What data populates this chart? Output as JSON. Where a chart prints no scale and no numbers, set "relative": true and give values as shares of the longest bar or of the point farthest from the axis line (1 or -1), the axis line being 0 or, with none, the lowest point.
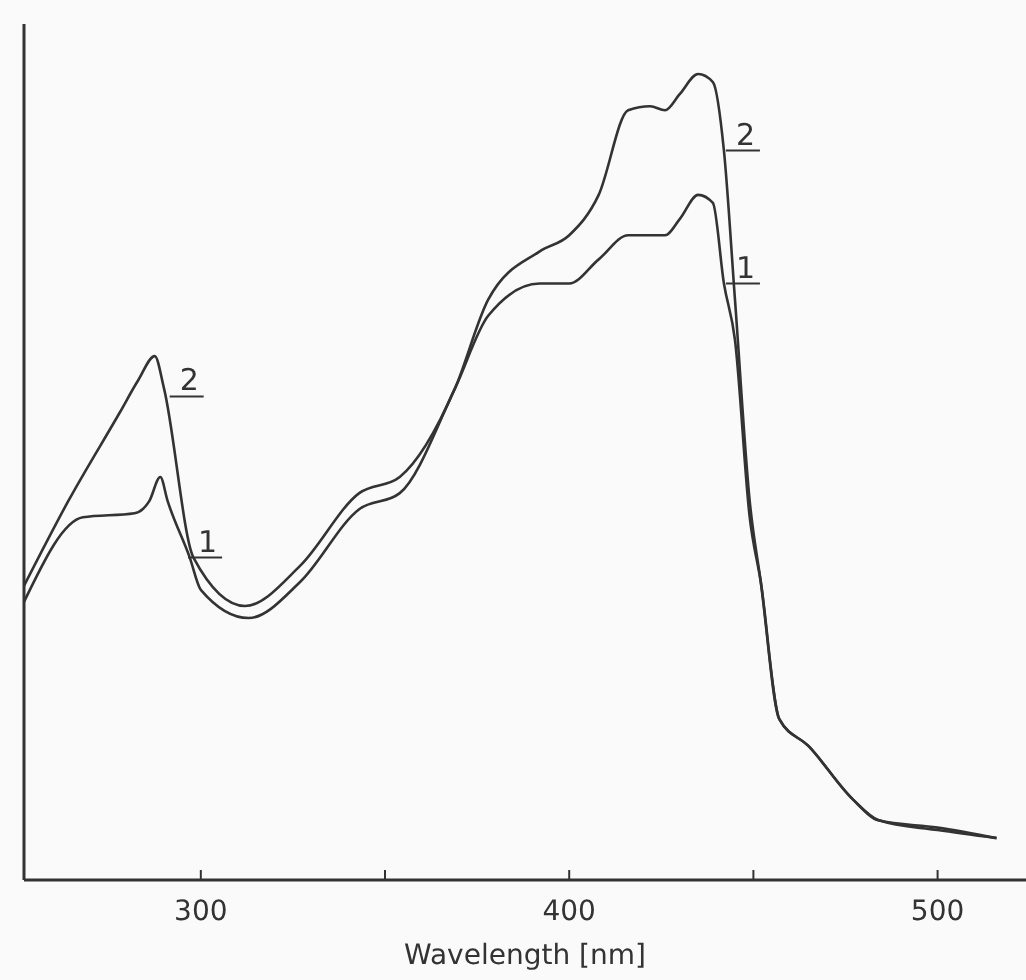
{
  "chart_data": {
    "type": "line",
    "xlabel": "Wavelength [nm]",
    "relative": true,
    "xlim": [
      252,
      524
    ],
    "xticks": [
      300,
      {
        "value": 350,
        "label": null
      },
      400,
      {
        "value": 450,
        "label": null
      },
      500
    ],
    "grid": false,
    "marker": "none",
    "line_style": "solid",
    "series": [
      {
        "color": "#333333",
        "x": [
          252,
          268,
          282,
          286,
          289,
          291,
          297,
          300,
          313,
          327,
          343,
          354,
          369,
          378,
          392,
          400,
          408,
          416,
          422,
          426,
          430,
          435,
          439,
          442,
          445,
          449,
          452,
          457,
          465,
          477,
          484,
          500,
          516
        ],
        "values": [
          0.345,
          0.45,
          0.455,
          0.47,
          0.5,
          0.47,
          0.4,
          0.36,
          0.325,
          0.37,
          0.46,
          0.48,
          0.61,
          0.7,
          0.74,
          0.74,
          0.77,
          0.8,
          0.8,
          0.8,
          0.82,
          0.85,
          0.84,
          0.74,
          0.67,
          0.45,
          0.37,
          0.2,
          0.166,
          0.1,
          0.074,
          0.062,
          0.052
        ]
      },
      {
        "color": "#333333",
        "x": [
          252,
          264,
          278,
          283,
          287.5,
          290,
          298,
          312,
          327,
          343,
          354,
          369,
          378,
          392,
          400,
          408,
          416,
          422,
          426,
          430,
          435,
          439,
          442,
          445,
          449,
          452,
          457,
          465,
          477,
          484,
          500,
          516
        ],
        "values": [
          0.365,
          0.47,
          0.58,
          0.62,
          0.65,
          0.61,
          0.4,
          0.34,
          0.39,
          0.48,
          0.5,
          0.61,
          0.72,
          0.78,
          0.8,
          0.85,
          0.955,
          0.96,
          0.955,
          0.975,
          1.0,
          0.99,
          0.905,
          0.72,
          0.47,
          0.37,
          0.2,
          0.166,
          0.1,
          0.074,
          0.065,
          0.052
        ]
      }
    ],
    "annotations": [
      {
        "text": "2",
        "x": 291,
        "y": 0.6
      },
      {
        "text": "1",
        "x": 296,
        "y": 0.4
      },
      {
        "text": "2",
        "x": 442,
        "y": 0.905
      },
      {
        "text": "1",
        "x": 442,
        "y": 0.74
      }
    ]
  }
}
